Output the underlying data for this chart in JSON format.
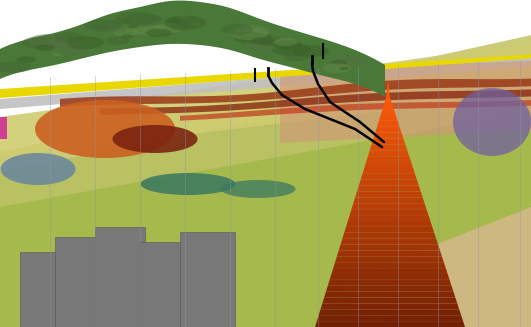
{
  "figsize": [
    5.31,
    3.27
  ],
  "dpi": 100,
  "bg_color": "#ffffff",
  "terrain_green_dark": "#3a6828",
  "terrain_green": "#4a7a3a",
  "terrain_green_light": "#6a9a5a",
  "yellow_bright": "#e8d800",
  "gray_layer": "#c0c0c0",
  "pale_yellow": "#d4c870",
  "light_yellow_green": "#c8cc70",
  "lime_green": "#a8c060",
  "teal_green": "#3a7860",
  "red_brown_dark": "#7a2010",
  "red_brown": "#9a3818",
  "orange_dark": "#cc5510",
  "orange_mid": "#d06010",
  "orange_light": "#e09040",
  "salmon": "#c89070",
  "peach": "#e0b898",
  "blue_gray": "#6080a0",
  "purple": "#7060a0",
  "pink": "#d04090",
  "gray_dark": "#787878",
  "gray_med": "#909090",
  "khaki": "#b0a050",
  "olive": "#888040",
  "tan": "#c8b870",
  "grid_color": "#8898aa",
  "well_color": "#000000"
}
